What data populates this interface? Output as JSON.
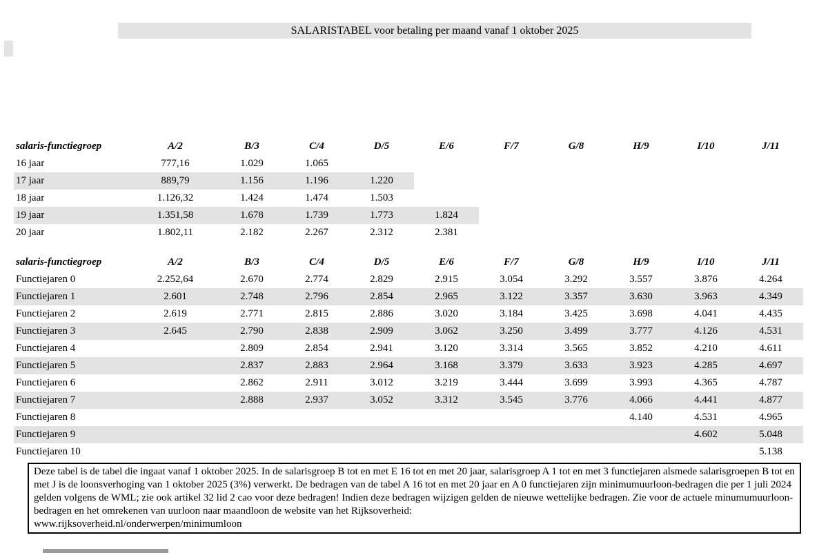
{
  "title": "SALARISTABEL voor betaling per maand vanaf 1 oktober 2025",
  "columns": [
    "A/2",
    "B/3",
    "C/4",
    "D/5",
    "E/6",
    "F/7",
    "G/8",
    "H/9",
    "I/10",
    "J/11"
  ],
  "tables": [
    {
      "header_label": "salaris-functiegroep",
      "rows": [
        {
          "label": "16 jaar",
          "shaded": false,
          "values": [
            "777,16",
            "1.029",
            "1.065",
            "",
            "",
            "",
            "",
            "",
            "",
            ""
          ]
        },
        {
          "label": "17 jaar",
          "shaded": true,
          "values": [
            "889,79",
            "1.156",
            "1.196",
            "1.220",
            "",
            "",
            "",
            "",
            "",
            ""
          ]
        },
        {
          "label": "18 jaar",
          "shaded": false,
          "values": [
            "1.126,32",
            "1.424",
            "1.474",
            "1.503",
            "",
            "",
            "",
            "",
            "",
            ""
          ]
        },
        {
          "label": "19 jaar",
          "shaded": true,
          "values": [
            "1.351,58",
            "1.678",
            "1.739",
            "1.773",
            "1.824",
            "",
            "",
            "",
            "",
            ""
          ]
        },
        {
          "label": "20 jaar",
          "shaded": false,
          "values": [
            "1.802,11",
            "2.182",
            "2.267",
            "2.312",
            "2.381",
            "",
            "",
            "",
            "",
            ""
          ]
        }
      ]
    },
    {
      "header_label": "salaris-functiegroep",
      "rows": [
        {
          "label": "Functiejaren 0",
          "shaded": false,
          "values": [
            "2.252,64",
            "2.670",
            "2.774",
            "2.829",
            "2.915",
            "3.054",
            "3.292",
            "3.557",
            "3.876",
            "4.264"
          ]
        },
        {
          "label": "Functiejaren 1",
          "shaded": true,
          "values": [
            "2.601",
            "2.748",
            "2.796",
            "2.854",
            "2.965",
            "3.122",
            "3.357",
            "3.630",
            "3.963",
            "4.349"
          ]
        },
        {
          "label": "Functiejaren 2",
          "shaded": false,
          "values": [
            "2.619",
            "2.771",
            "2.815",
            "2.886",
            "3.020",
            "3.184",
            "3.425",
            "3.698",
            "4.041",
            "4.435"
          ]
        },
        {
          "label": "Functiejaren 3",
          "shaded": true,
          "values": [
            "2.645",
            "2.790",
            "2.838",
            "2.909",
            "3.062",
            "3.250",
            "3.499",
            "3.777",
            "4.126",
            "4.531"
          ]
        },
        {
          "label": "Functiejaren 4",
          "shaded": false,
          "values": [
            "",
            "2.809",
            "2.854",
            "2.941",
            "3.120",
            "3.314",
            "3.565",
            "3.852",
            "4.210",
            "4.611"
          ]
        },
        {
          "label": "Functiejaren 5",
          "shaded": true,
          "values": [
            "",
            "2.837",
            "2.883",
            "2.964",
            "3.168",
            "3.379",
            "3.633",
            "3.923",
            "4.285",
            "4.697"
          ]
        },
        {
          "label": "Functiejaren 6",
          "shaded": false,
          "values": [
            "",
            "2.862",
            "2.911",
            "3.012",
            "3.219",
            "3.444",
            "3.699",
            "3.993",
            "4.365",
            "4.787"
          ]
        },
        {
          "label": "Functiejaren 7",
          "shaded": true,
          "values": [
            "",
            "2.888",
            "2.937",
            "3.052",
            "3.312",
            "3.545",
            "3.776",
            "4.066",
            "4.441",
            "4.877"
          ]
        },
        {
          "label": "Functiejaren 8",
          "shaded": false,
          "values": [
            "",
            "",
            "",
            "",
            "",
            "",
            "",
            "4.140",
            "4.531",
            "4.965"
          ]
        },
        {
          "label": "Functiejaren 9",
          "shaded": true,
          "values": [
            "",
            "",
            "",
            "",
            "",
            "",
            "",
            "",
            "4.602",
            "5.048"
          ]
        },
        {
          "label": "Functiejaren 10",
          "shaded": false,
          "values": [
            "",
            "",
            "",
            "",
            "",
            "",
            "",
            "",
            "",
            "5.138"
          ]
        }
      ]
    }
  ],
  "footnote": {
    "text": "Deze tabel is de tabel die ingaat vanaf 1 oktober 2025. In de salarisgroep B tot en met E 16 tot en met 20 jaar, salarisgroep A 1 tot en met 3 functiejaren alsmede salarisgroepen B tot en met J is de loonsverhoging van 1 oktober 2025 (3%) verwerkt. De bedragen van de tabel A 16 tot en met 20 jaar en A 0 functiejaren zijn minimumuurloon-bedragen die per 1 juli 2024 gelden volgens de WML; zie ook artikel 32 lid 2 cao voor deze bedragen! Indien deze bedragen wijzigen gelden de nieuwe wettelijke bedragen. Zie voor de actuele minumumuurloon-bedragen en het omrekenen van uurloon naar maandloon de website van het Rijksoverheid:",
    "url": "www.rijksoverheid.nl/onderwerpen/minimumloon"
  }
}
